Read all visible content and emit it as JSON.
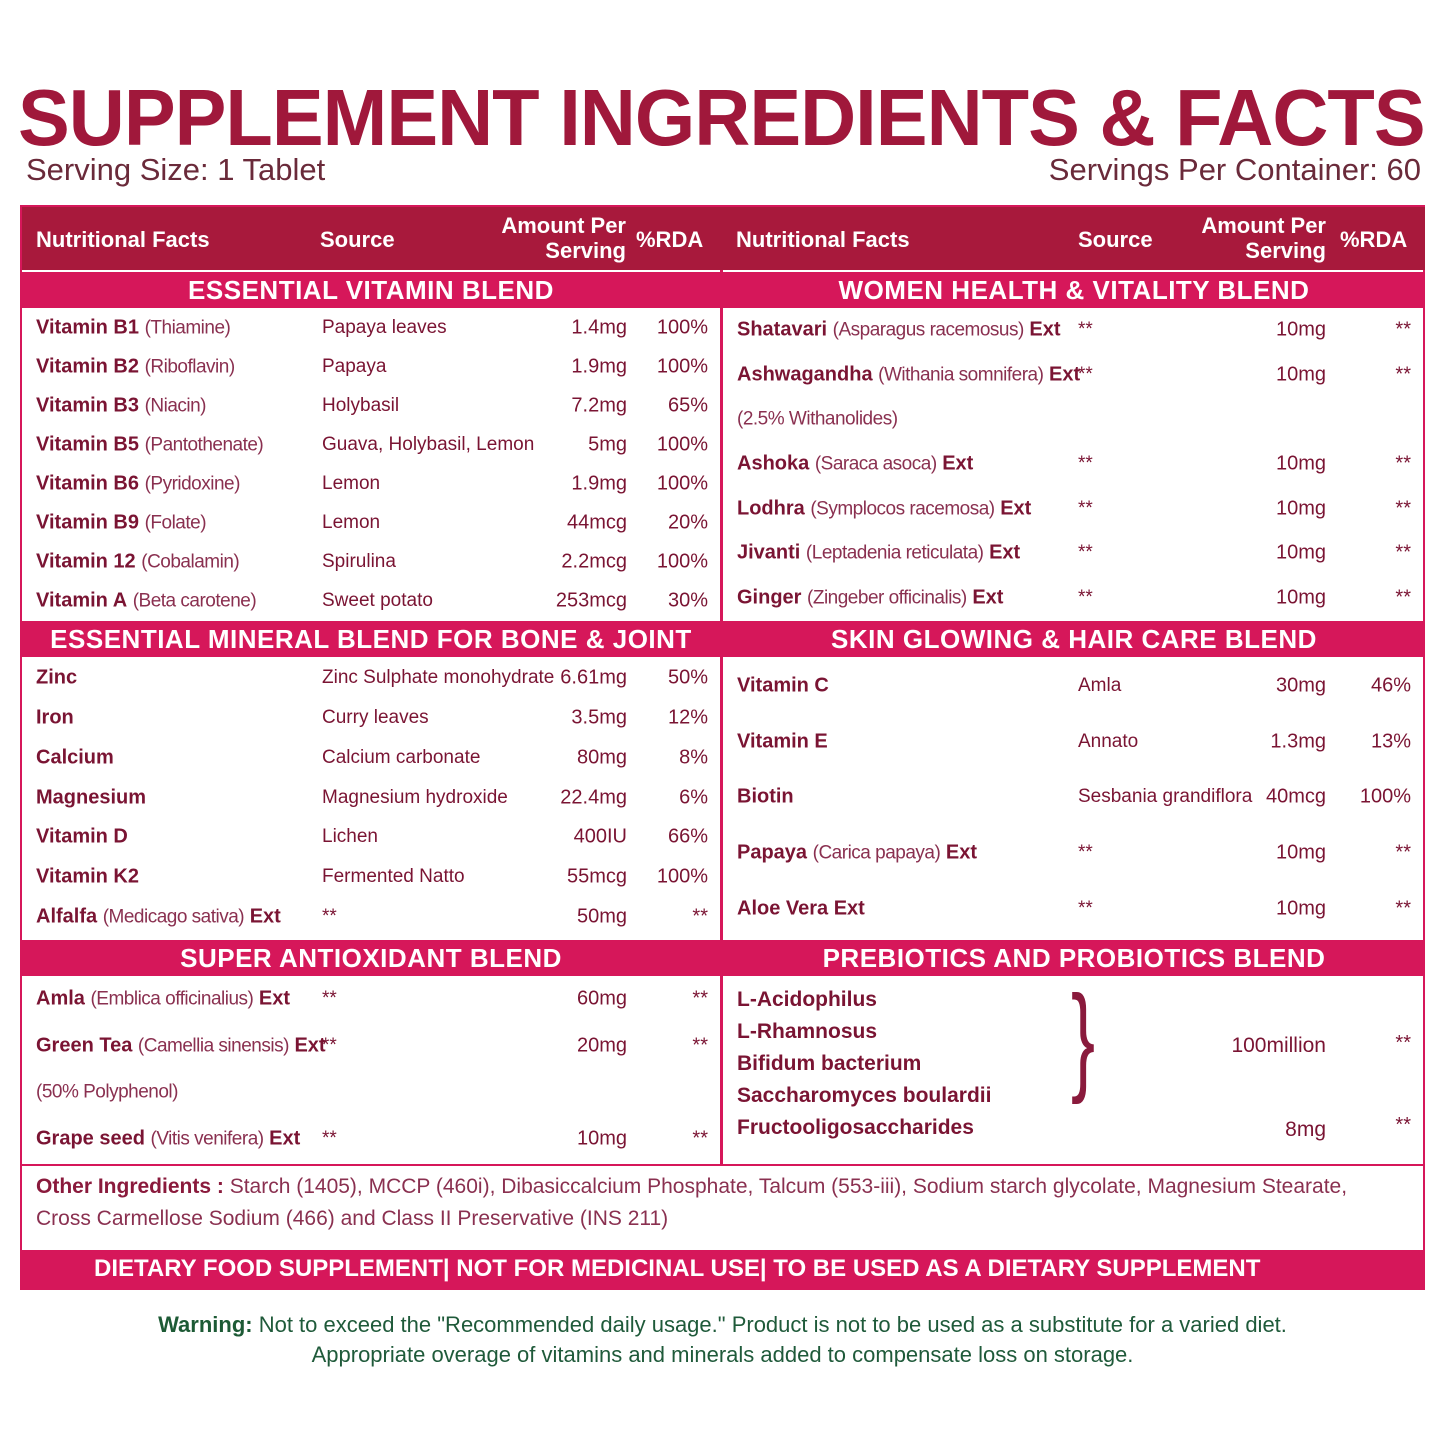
{
  "title": "SUPPLEMENT INGREDIENTS & FACTS",
  "serving_size": "Serving Size:  1 Tablet",
  "servings_per_container": "Servings Per Container: 60",
  "columns": {
    "name": "Nutritional Facts",
    "source": "Source",
    "amount": "Amount Per Serving",
    "rda": "%RDA"
  },
  "colors": {
    "header": "#a8193c",
    "section": "#d6175a",
    "text": "#7a1433",
    "warning": "#1f5a3a"
  },
  "left": [
    {
      "title": "ESSENTIAL VITAMIN BLEND",
      "rows": [
        {
          "name": "Vitamin B1",
          "detail": "(Thiamine)",
          "ext": "",
          "source": "Papaya leaves",
          "amount": "1.4mg",
          "rda": "100%"
        },
        {
          "name": "Vitamin B2",
          "detail": "(Riboflavin)",
          "ext": "",
          "source": "Papaya",
          "amount": "1.9mg",
          "rda": "100%"
        },
        {
          "name": "Vitamin B3",
          "detail": "(Niacin)",
          "ext": "",
          "source": "Holybasil",
          "amount": "7.2mg",
          "rda": "65%"
        },
        {
          "name": "Vitamin B5",
          "detail": "(Pantothenate)",
          "ext": "",
          "source": "Guava, Holybasil, Lemon",
          "amount": "5mg",
          "rda": "100%"
        },
        {
          "name": "Vitamin B6",
          "detail": "(Pyridoxine)",
          "ext": "",
          "source": "Lemon",
          "amount": "1.9mg",
          "rda": "100%"
        },
        {
          "name": "Vitamin B9",
          "detail": "(Folate)",
          "ext": "",
          "source": "Lemon",
          "amount": "44mcg",
          "rda": "20%"
        },
        {
          "name": "Vitamin 12",
          "detail": "(Cobalamin)",
          "ext": "",
          "source": "Spirulina",
          "amount": "2.2mcg",
          "rda": "100%"
        },
        {
          "name": "Vitamin A",
          "detail": "(Beta carotene)",
          "ext": "",
          "source": "Sweet potato",
          "amount": "253mcg",
          "rda": "30%"
        }
      ]
    },
    {
      "title": "ESSENTIAL MINERAL BLEND FOR BONE & JOINT",
      "rows": [
        {
          "name": "Zinc",
          "detail": "",
          "ext": "",
          "source": "Zinc Sulphate monohydrate",
          "amount": "6.61mg",
          "rda": "50%"
        },
        {
          "name": "Iron",
          "detail": "",
          "ext": "",
          "source": "Curry leaves",
          "amount": "3.5mg",
          "rda": "12%"
        },
        {
          "name": "Calcium",
          "detail": "",
          "ext": "",
          "source": "Calcium carbonate",
          "amount": "80mg",
          "rda": "8%"
        },
        {
          "name": "Magnesium",
          "detail": "",
          "ext": "",
          "source": "Magnesium hydroxide",
          "amount": "22.4mg",
          "rda": "6%"
        },
        {
          "name": "Vitamin D",
          "detail": "",
          "ext": "",
          "source": "Lichen",
          "amount": "400IU",
          "rda": "66%"
        },
        {
          "name": "Vitamin K2",
          "detail": "",
          "ext": "",
          "source": "Fermented Natto",
          "amount": "55mcg",
          "rda": "100%"
        },
        {
          "name": "Alfalfa",
          "detail": "(Medicago sativa)",
          "ext": "Ext",
          "source": "**",
          "amount": "50mg",
          "rda": "**"
        }
      ]
    },
    {
      "title": "SUPER ANTIOXIDANT BLEND",
      "rows": [
        {
          "name": "Amla",
          "detail": "(Emblica officinalius)",
          "ext": "Ext",
          "source": "**",
          "amount": "60mg",
          "rda": "**"
        },
        {
          "name": "Green Tea",
          "detail": " (Camellia sinensis)",
          "ext": "Ext",
          "source": "**",
          "amount": "20mg",
          "rda": "**"
        },
        {
          "name": "",
          "detail": "(50% Polyphenol)",
          "ext": "",
          "source": "",
          "amount": "",
          "rda": ""
        },
        {
          "name": "Grape seed",
          "detail": "(Vitis venifera)",
          "ext": "Ext",
          "source": "**",
          "amount": "10mg",
          "rda": "**"
        }
      ]
    }
  ],
  "right": [
    {
      "title": "WOMEN HEALTH & VITALITY BLEND",
      "rows": [
        {
          "name": "Shatavari",
          "detail": "(Asparagus racemosus)",
          "ext": "Ext",
          "source": "**",
          "amount": "10mg",
          "rda": "**"
        },
        {
          "name": "Ashwagandha",
          "detail": "(Withania somnifera)",
          "ext": "Ext",
          "source": "**",
          "amount": "10mg",
          "rda": "**"
        },
        {
          "name": "",
          "detail": "(2.5% Withanolides)",
          "ext": "",
          "source": "",
          "amount": "",
          "rda": ""
        },
        {
          "name": "Ashoka",
          "detail": "(Saraca asoca)",
          "ext": "Ext",
          "source": "**",
          "amount": "10mg",
          "rda": "**"
        },
        {
          "name": "Lodhra",
          "detail": "(Symplocos racemosa)",
          "ext": "Ext",
          "source": "**",
          "amount": "10mg",
          "rda": "**"
        },
        {
          "name": "Jivanti",
          "detail": "(Leptadenia reticulata)",
          "ext": "Ext",
          "source": "**",
          "amount": "10mg",
          "rda": "**"
        },
        {
          "name": "Ginger",
          "detail": "(Zingeber officinalis)",
          "ext": "Ext",
          "source": "**",
          "amount": "10mg",
          "rda": "**"
        }
      ]
    },
    {
      "title": "SKIN GLOWING & HAIR CARE BLEND",
      "rows": [
        {
          "name": "Vitamin C",
          "detail": "",
          "ext": "",
          "source": "Amla",
          "amount": "30mg",
          "rda": "46%"
        },
        {
          "name": "Vitamin E",
          "detail": "",
          "ext": "",
          "source": "Annato",
          "amount": "1.3mg",
          "rda": "13%"
        },
        {
          "name": "Biotin",
          "detail": "",
          "ext": "",
          "source": "Sesbania grandiflora",
          "amount": "40mcg",
          "rda": "100%"
        },
        {
          "name": "Papaya",
          "detail": "(Carica papaya)",
          "ext": "Ext",
          "source": "**",
          "amount": "10mg",
          "rda": "**"
        },
        {
          "name": "Aloe Vera Ext",
          "detail": "",
          "ext": "",
          "source": "**",
          "amount": "10mg",
          "rda": "**"
        }
      ]
    },
    {
      "title": "PREBIOTICS AND PROBIOTICS BLEND",
      "probiotics": [
        "L-Acidophilus",
        "L-Rhamnosus",
        "Bifidum bacterium",
        "Saccharomyces boulardii"
      ],
      "probiotics_amount": "100million",
      "probiotics_rda": "**",
      "fos": {
        "name": "Fructooligosaccharides",
        "amount": "8mg",
        "rda": "**"
      }
    }
  ],
  "other_ingredients": {
    "label": "Other Ingredients :",
    "text": " Starch (1405), MCCP (460i), Dibasiccalcium Phosphate, Talcum (553-iii), Sodium starch glycolate, Magnesium Stearate, Cross Carmellose Sodium (466) and Class II Preservative (INS 211)"
  },
  "footer": "DIETARY FOOD SUPPLEMENT|  NOT FOR MEDICINAL USE|  TO BE USED AS A DIETARY SUPPLEMENT",
  "warning": {
    "label": "Warning:",
    "line1": " Not to exceed the \"Recommended daily usage.\" Product is not to be used as a substitute for a varied diet.",
    "line2": "Appropriate overage of vitamins and minerals added to compensate loss on storage."
  }
}
